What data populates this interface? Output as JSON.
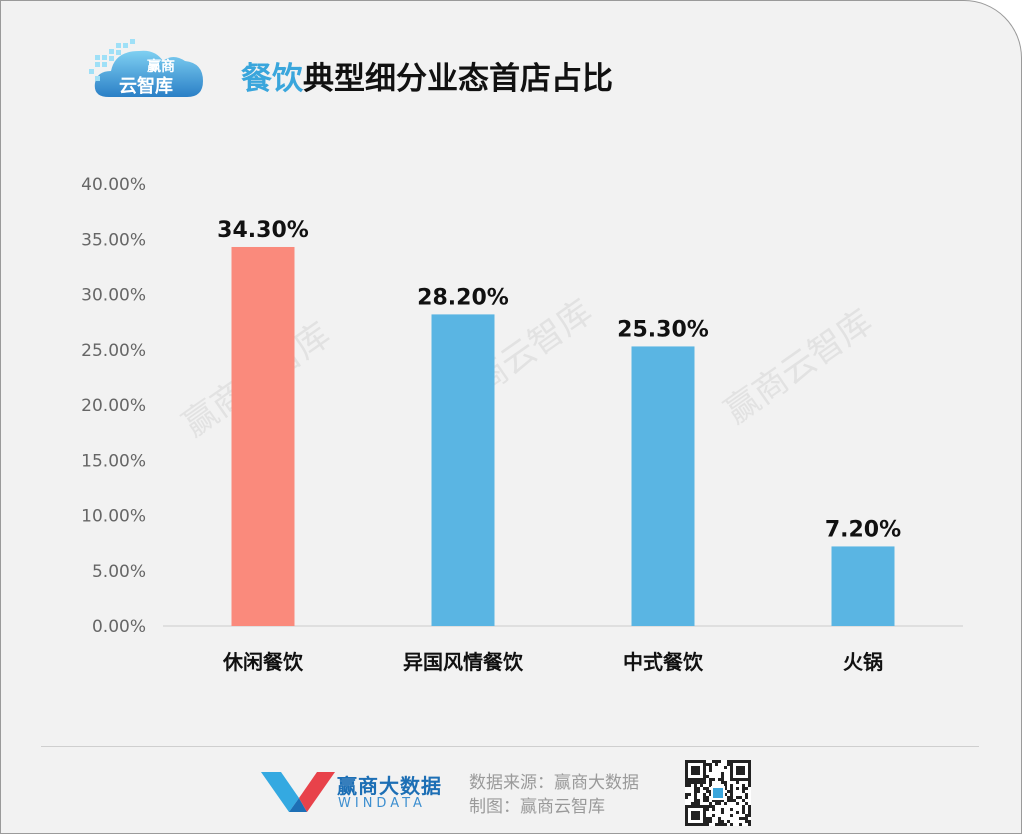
{
  "header": {
    "logo_text_top": "赢商",
    "logo_text_bottom": "云智库",
    "title_highlight": "餐饮",
    "title_rest": "典型细分业态首店占比"
  },
  "watermark": "赢商云智库",
  "footer": {
    "brand_name": "赢商大数据",
    "brand_en": "WINDATA",
    "source_line": "数据来源：赢商大数据",
    "maker_line": "制图：赢商云智库"
  },
  "colors": {
    "highlight_bar": "#fa8a7c",
    "bar": "#5ab5e3",
    "title_accent": "#3aa6dc"
  },
  "chart_data": {
    "type": "bar",
    "categories": [
      "休闲餐饮",
      "异国风情餐饮",
      "中式餐饮",
      "火锅"
    ],
    "values": [
      34.3,
      28.2,
      25.3,
      7.2
    ],
    "data_labels": [
      "34.30%",
      "28.20%",
      "25.30%",
      "7.20%"
    ],
    "y_ticks": [
      "0.00%",
      "5.00%",
      "10.00%",
      "15.00%",
      "20.00%",
      "25.00%",
      "30.00%",
      "35.00%",
      "40.00%"
    ],
    "ylim": [
      0,
      40
    ],
    "grid": false,
    "highlight_index": 0
  }
}
